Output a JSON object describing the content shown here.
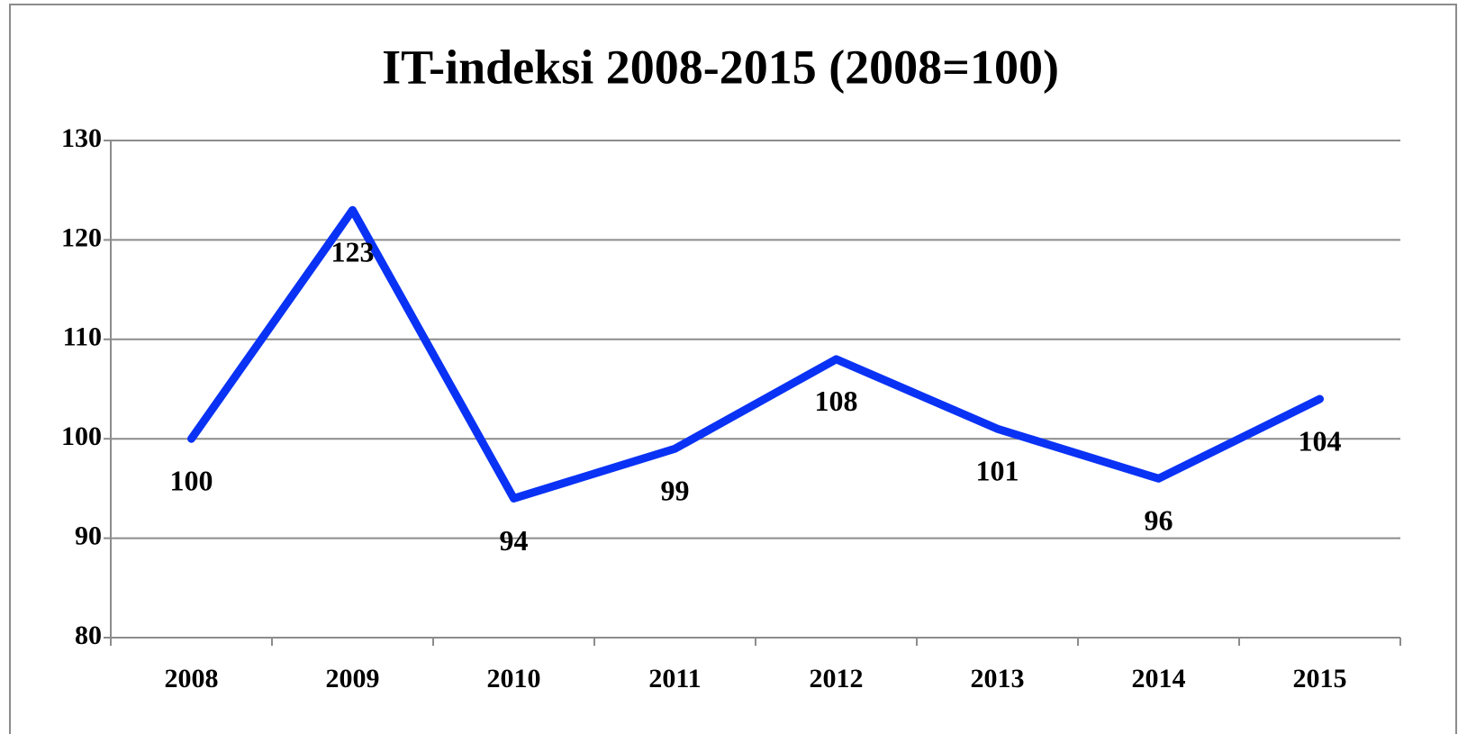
{
  "chart_data": {
    "type": "line",
    "title": "IT-indeksi 2008-2015 (2008=100)",
    "categories": [
      "2008",
      "2009",
      "2010",
      "2011",
      "2012",
      "2013",
      "2014",
      "2015"
    ],
    "values": [
      100,
      123,
      94,
      99,
      108,
      101,
      96,
      104
    ],
    "color": "#0a32f5",
    "ylim": [
      80,
      130
    ],
    "yticks": [
      80,
      90,
      100,
      110,
      120,
      130
    ],
    "grid": true
  }
}
